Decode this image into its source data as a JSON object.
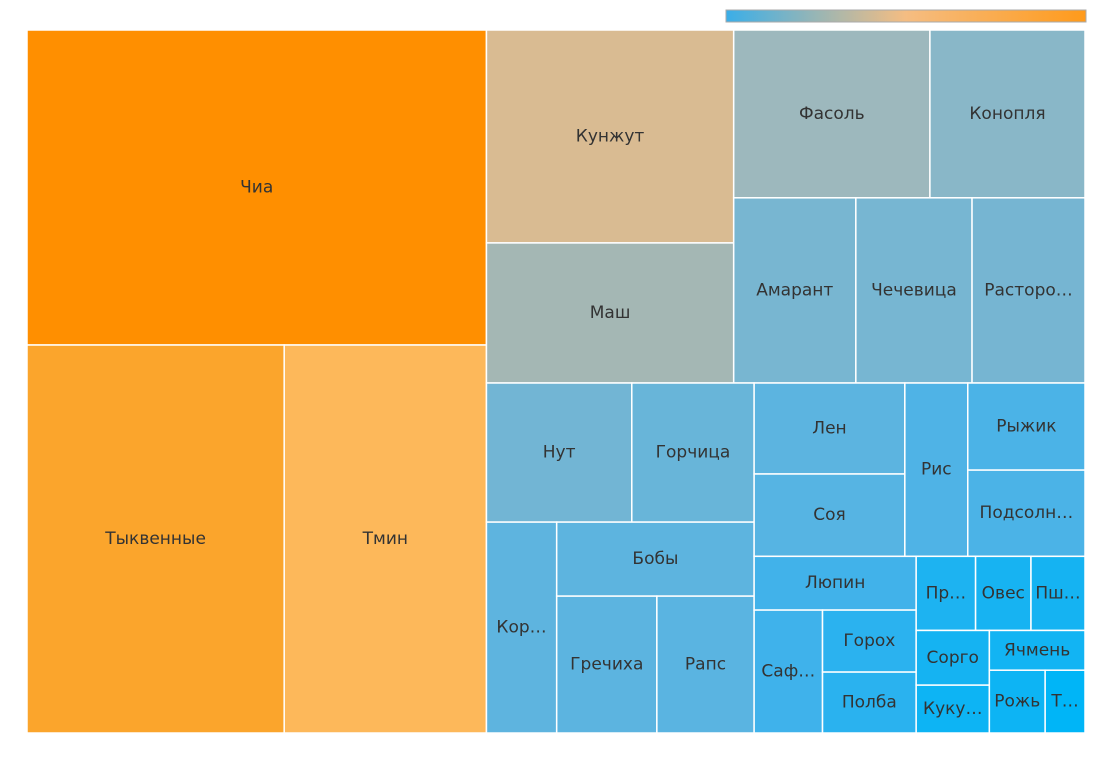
{
  "chart_data": {
    "type": "treemap",
    "nodes": [
      {
        "name": "Чиа",
        "value": 144600,
        "color": "#ff8f00"
      },
      {
        "name": "Тыквенные",
        "value": 99700,
        "color": "#fba52c"
      },
      {
        "name": "Тмин",
        "value": 78400,
        "color": "#fdb85a"
      },
      {
        "name": "Кунжут",
        "value": 52600,
        "color": "#d9bb92"
      },
      {
        "name": "Маш",
        "value": 34600,
        "color": "#a4b7b4"
      },
      {
        "name": "Фасоль",
        "value": 32900,
        "color": "#9db8bd"
      },
      {
        "name": "Конопля",
        "value": 26000,
        "color": "#89b7c8"
      },
      {
        "name": "Амарант",
        "value": 22600,
        "color": "#78b6d1"
      },
      {
        "name": "Чечевица",
        "value": 21500,
        "color": "#77b6d2"
      },
      {
        "name": "Расторо…",
        "value": 20900,
        "color": "#76b5d2"
      },
      {
        "name": "Нут",
        "value": 20200,
        "color": "#72b5d4"
      },
      {
        "name": "Горчица",
        "value": 17000,
        "color": "#68b5d9"
      },
      {
        "name": "Кор…",
        "value": 14800,
        "color": "#5eb4df"
      },
      {
        "name": "Бобы",
        "value": 14600,
        "color": "#5db4df"
      },
      {
        "name": "Лен",
        "value": 13700,
        "color": "#5cb4e0"
      },
      {
        "name": "Гречиха",
        "value": 13700,
        "color": "#5cb4e0"
      },
      {
        "name": "Рапс",
        "value": 13300,
        "color": "#5ab4e1"
      },
      {
        "name": "Соя",
        "value": 12400,
        "color": "#56b4e3"
      },
      {
        "name": "Рис",
        "value": 10900,
        "color": "#4fb3e6"
      },
      {
        "name": "Рыжик",
        "value": 10200,
        "color": "#4bb3e7"
      },
      {
        "name": "Подсолн…",
        "value": 10100,
        "color": "#4bb3e7"
      },
      {
        "name": "Люпин",
        "value": 8700,
        "color": "#41b2ea"
      },
      {
        "name": "Саф…",
        "value": 8400,
        "color": "#3fb2eb"
      },
      {
        "name": "Горох",
        "value": 5800,
        "color": "#2bb2ef"
      },
      {
        "name": "Полба",
        "value": 5700,
        "color": "#2ab2ef"
      },
      {
        "name": "Пр…",
        "value": 4400,
        "color": "#1db3f1"
      },
      {
        "name": "Овес",
        "value": 4100,
        "color": "#17b3f2"
      },
      {
        "name": "Сорго",
        "value": 4000,
        "color": "#15b3f2"
      },
      {
        "name": "Пш…",
        "value": 4000,
        "color": "#15b3f2"
      },
      {
        "name": "Ячмень",
        "value": 3800,
        "color": "#12b4f3"
      },
      {
        "name": "Рожь",
        "value": 3500,
        "color": "#0db4f4"
      },
      {
        "name": "Куку…",
        "value": 3500,
        "color": "#0db4f4"
      },
      {
        "name": "Т…",
        "value": 2500,
        "color": "#00b5f7"
      }
    ],
    "colorbar": {
      "colors": [
        "#3aaee8",
        "#f5bd82",
        "#ff9a1a"
      ]
    }
  }
}
